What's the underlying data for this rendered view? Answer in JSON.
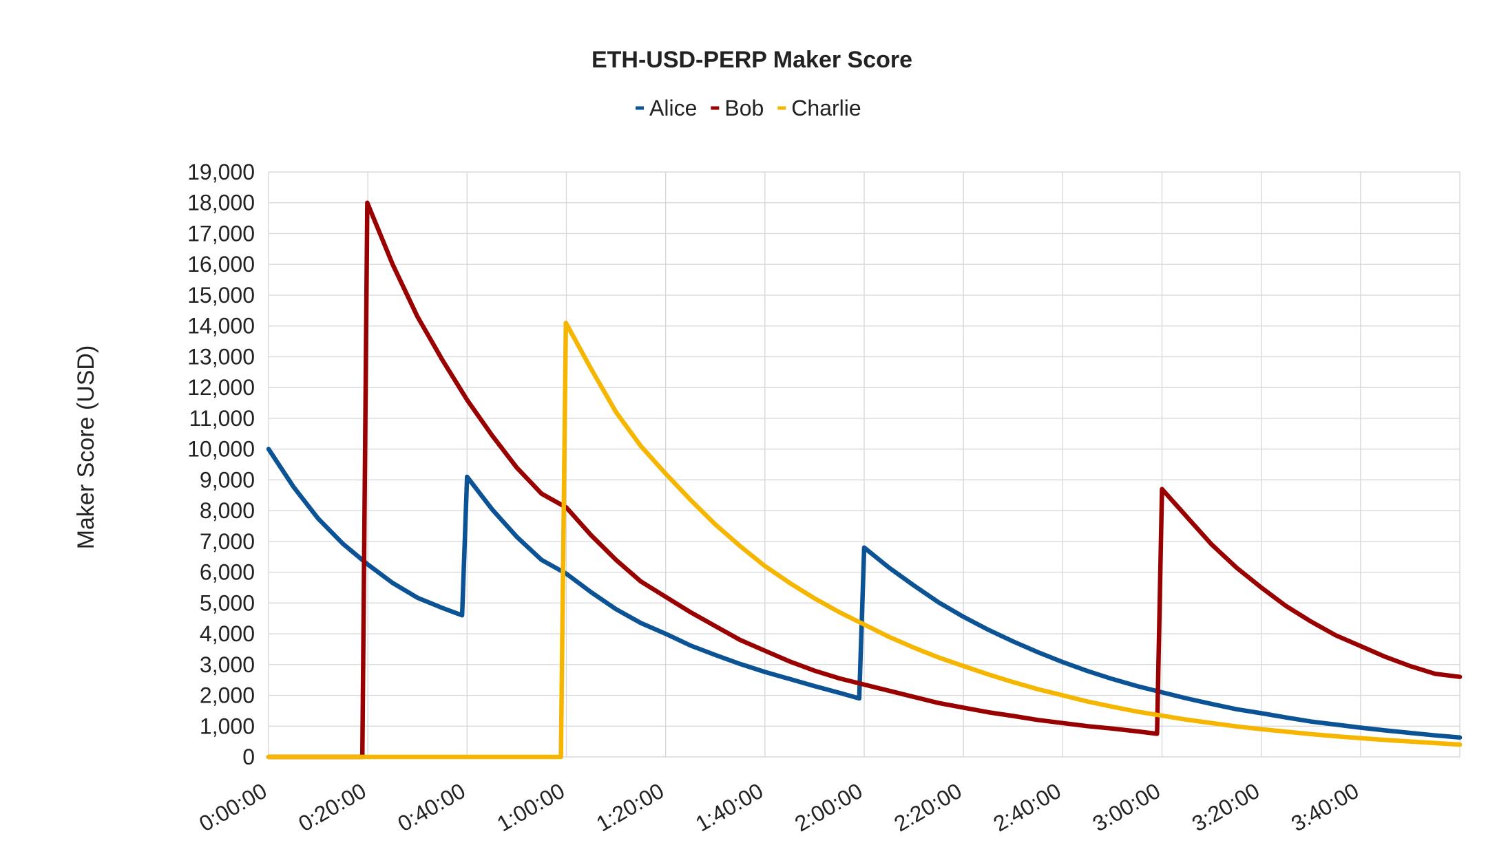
{
  "chart_data": {
    "type": "line",
    "title": "ETH-USD-PERP Maker Score",
    "xlabel": "",
    "ylabel": "Maker Score (USD)",
    "legend_position": "top-center",
    "grid": true,
    "x_unit": "minutes",
    "xlim": [
      0,
      240
    ],
    "ylim": [
      0,
      19000
    ],
    "x_tick_labels": [
      "0:00:00",
      "0:20:00",
      "0:40:00",
      "1:00:00",
      "1:20:00",
      "1:40:00",
      "2:00:00",
      "2:20:00",
      "2:40:00",
      "3:00:00",
      "3:20:00",
      "3:40:00"
    ],
    "x_ticks": [
      0,
      20,
      40,
      60,
      80,
      100,
      120,
      140,
      160,
      180,
      200,
      220
    ],
    "y_ticks": [
      0,
      1000,
      2000,
      3000,
      4000,
      5000,
      6000,
      7000,
      8000,
      9000,
      10000,
      11000,
      12000,
      13000,
      14000,
      15000,
      16000,
      17000,
      18000,
      19000
    ],
    "y_tick_labels": [
      "0",
      "1,000",
      "2,000",
      "3,000",
      "4,000",
      "5,000",
      "6,000",
      "7,000",
      "8,000",
      "9,000",
      "10,000",
      "11,000",
      "12,000",
      "13,000",
      "14,000",
      "15,000",
      "16,000",
      "17,000",
      "18,000",
      "19,000"
    ],
    "series": [
      {
        "name": "Alice",
        "color": "#0b5394",
        "points": [
          [
            0,
            10000
          ],
          [
            5,
            8780
          ],
          [
            10,
            7740
          ],
          [
            15,
            6920
          ],
          [
            20,
            6250
          ],
          [
            25,
            5650
          ],
          [
            30,
            5170
          ],
          [
            35,
            4840
          ],
          [
            39,
            4600
          ],
          [
            40,
            9100
          ],
          [
            45,
            8050
          ],
          [
            50,
            7150
          ],
          [
            55,
            6400
          ],
          [
            60,
            5950
          ],
          [
            65,
            5350
          ],
          [
            70,
            4800
          ],
          [
            75,
            4350
          ],
          [
            80,
            4000
          ],
          [
            85,
            3620
          ],
          [
            90,
            3310
          ],
          [
            95,
            3020
          ],
          [
            100,
            2760
          ],
          [
            105,
            2530
          ],
          [
            110,
            2300
          ],
          [
            115,
            2080
          ],
          [
            119,
            1900
          ],
          [
            120,
            6800
          ],
          [
            125,
            6150
          ],
          [
            130,
            5570
          ],
          [
            135,
            5020
          ],
          [
            140,
            4550
          ],
          [
            145,
            4130
          ],
          [
            150,
            3750
          ],
          [
            155,
            3400
          ],
          [
            160,
            3080
          ],
          [
            165,
            2790
          ],
          [
            170,
            2530
          ],
          [
            175,
            2300
          ],
          [
            180,
            2100
          ],
          [
            185,
            1900
          ],
          [
            190,
            1720
          ],
          [
            195,
            1550
          ],
          [
            200,
            1420
          ],
          [
            205,
            1280
          ],
          [
            210,
            1150
          ],
          [
            215,
            1050
          ],
          [
            220,
            950
          ],
          [
            225,
            860
          ],
          [
            230,
            780
          ],
          [
            235,
            700
          ],
          [
            240,
            630
          ]
        ]
      },
      {
        "name": "Bob",
        "color": "#990000",
        "points": [
          [
            0,
            0
          ],
          [
            18.9,
            0
          ],
          [
            19.9,
            18000
          ],
          [
            25,
            16000
          ],
          [
            30,
            14300
          ],
          [
            35,
            12900
          ],
          [
            40,
            11600
          ],
          [
            45,
            10450
          ],
          [
            50,
            9400
          ],
          [
            55,
            8550
          ],
          [
            60,
            8100
          ],
          [
            65,
            7200
          ],
          [
            70,
            6400
          ],
          [
            75,
            5700
          ],
          [
            80,
            5200
          ],
          [
            85,
            4700
          ],
          [
            90,
            4250
          ],
          [
            95,
            3800
          ],
          [
            100,
            3450
          ],
          [
            105,
            3100
          ],
          [
            110,
            2800
          ],
          [
            115,
            2550
          ],
          [
            120,
            2350
          ],
          [
            125,
            2150
          ],
          [
            130,
            1950
          ],
          [
            135,
            1750
          ],
          [
            140,
            1600
          ],
          [
            145,
            1450
          ],
          [
            150,
            1330
          ],
          [
            155,
            1200
          ],
          [
            160,
            1100
          ],
          [
            165,
            1000
          ],
          [
            170,
            920
          ],
          [
            175,
            830
          ],
          [
            179,
            750
          ],
          [
            180,
            8700
          ],
          [
            185,
            7800
          ],
          [
            190,
            6900
          ],
          [
            195,
            6150
          ],
          [
            200,
            5500
          ],
          [
            205,
            4900
          ],
          [
            210,
            4400
          ],
          [
            215,
            3950
          ],
          [
            220,
            3600
          ],
          [
            225,
            3250
          ],
          [
            230,
            2950
          ],
          [
            235,
            2700
          ],
          [
            240,
            2600
          ]
        ]
      },
      {
        "name": "Charlie",
        "color": "#f6b600",
        "points": [
          [
            0,
            0
          ],
          [
            58.9,
            0
          ],
          [
            59.9,
            14100
          ],
          [
            65,
            12600
          ],
          [
            70,
            11200
          ],
          [
            75,
            10100
          ],
          [
            80,
            9200
          ],
          [
            85,
            8350
          ],
          [
            90,
            7550
          ],
          [
            95,
            6850
          ],
          [
            100,
            6200
          ],
          [
            105,
            5650
          ],
          [
            110,
            5150
          ],
          [
            115,
            4700
          ],
          [
            120,
            4300
          ],
          [
            125,
            3900
          ],
          [
            130,
            3550
          ],
          [
            135,
            3230
          ],
          [
            140,
            2950
          ],
          [
            145,
            2680
          ],
          [
            150,
            2430
          ],
          [
            155,
            2200
          ],
          [
            160,
            2000
          ],
          [
            165,
            1800
          ],
          [
            170,
            1630
          ],
          [
            175,
            1470
          ],
          [
            180,
            1340
          ],
          [
            185,
            1210
          ],
          [
            190,
            1100
          ],
          [
            195,
            990
          ],
          [
            200,
            900
          ],
          [
            205,
            820
          ],
          [
            210,
            740
          ],
          [
            215,
            670
          ],
          [
            220,
            610
          ],
          [
            225,
            550
          ],
          [
            230,
            500
          ],
          [
            235,
            450
          ],
          [
            240,
            400
          ]
        ]
      }
    ]
  }
}
